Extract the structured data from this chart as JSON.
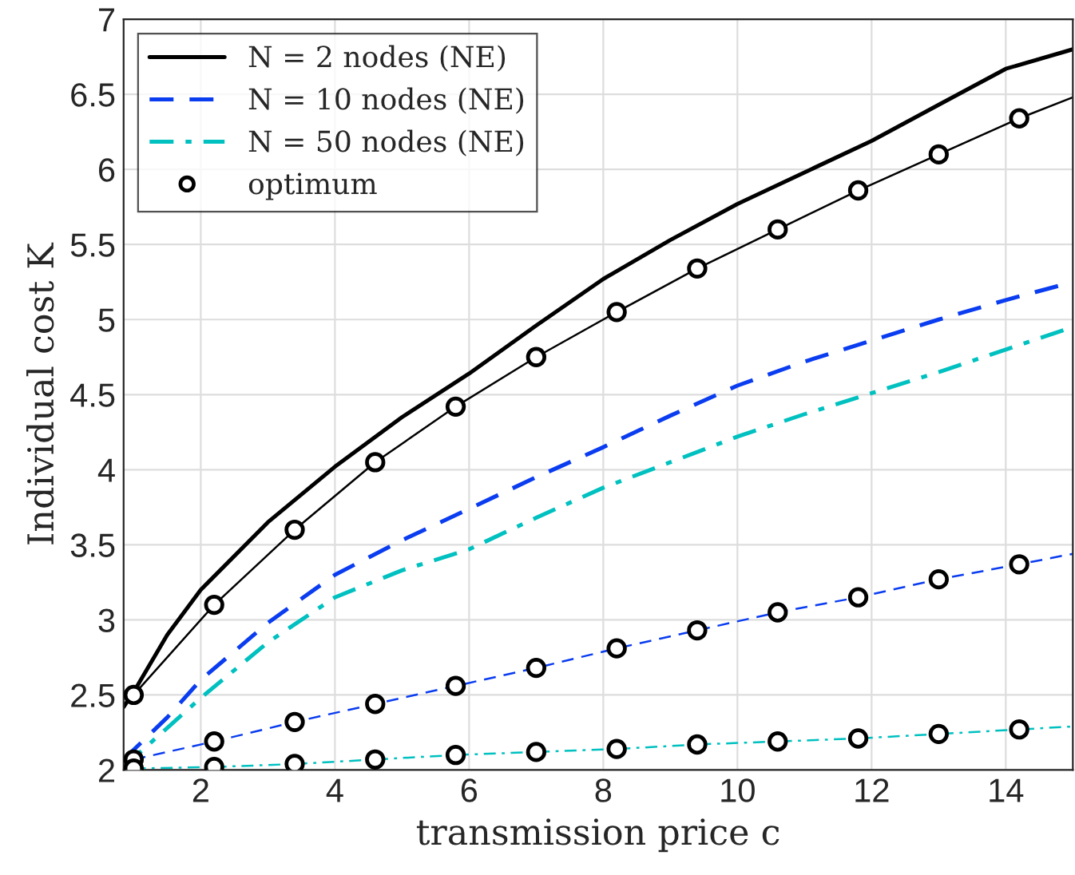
{
  "chart_data": {
    "type": "line",
    "xlabel": "transmission price c",
    "ylabel": "Individual cost K",
    "xlim": [
      0.85,
      15
    ],
    "ylim": [
      2,
      7
    ],
    "xticks": [
      2,
      4,
      6,
      8,
      10,
      12,
      14
    ],
    "yticks": [
      2,
      2.5,
      3,
      3.5,
      4,
      4.5,
      5,
      5.5,
      6,
      6.5,
      7
    ],
    "grid": true,
    "legend": "top left",
    "series": [
      {
        "name": "N = 2 nodes (NE)",
        "color": "#000000",
        "line_style": "solid",
        "x": [
          0.85,
          1,
          1.5,
          2,
          3,
          4,
          5,
          6,
          7,
          8,
          9,
          10,
          11,
          12,
          13,
          14,
          15
        ],
        "values": [
          2.42,
          2.52,
          2.9,
          3.2,
          3.65,
          4.02,
          4.35,
          4.64,
          4.96,
          5.27,
          5.53,
          5.77,
          5.98,
          6.19,
          6.43,
          6.67,
          6.8
        ]
      },
      {
        "name": "N = 10 nodes (NE)",
        "color": "#0a3cf0",
        "line_style": "dashed",
        "x": [
          0.85,
          1.5,
          2,
          3,
          4,
          5,
          6,
          7,
          8,
          9,
          10,
          11,
          12,
          13,
          14,
          15
        ],
        "values": [
          2.07,
          2.35,
          2.6,
          2.98,
          3.3,
          3.53,
          3.74,
          3.95,
          4.15,
          4.36,
          4.56,
          4.72,
          4.86,
          5.0,
          5.13,
          5.25
        ]
      },
      {
        "name": "N = 50 nodes (NE)",
        "color": "#00c0c0",
        "line_style": "dashdot",
        "x": [
          0.85,
          1.5,
          2,
          3,
          4,
          5,
          6,
          7,
          8,
          9,
          10,
          11,
          12,
          13,
          14,
          15
        ],
        "values": [
          2.02,
          2.28,
          2.48,
          2.85,
          3.15,
          3.33,
          3.47,
          3.68,
          3.88,
          4.05,
          4.22,
          4.37,
          4.51,
          4.65,
          4.8,
          4.95
        ]
      },
      {
        "color": "#000000",
        "line_style": "solid",
        "x": [
          1,
          2.2,
          3.4,
          4.6,
          5.8,
          7,
          8.2,
          9.4,
          10.6,
          11.8,
          13,
          14.2,
          15
        ],
        "values": [
          2.5,
          3.1,
          3.6,
          4.05,
          4.42,
          4.75,
          5.05,
          5.34,
          5.6,
          5.86,
          6.1,
          6.34,
          6.48
        ]
      },
      {
        "color": "#0a3cf0",
        "line_style": "dashed",
        "x": [
          1,
          2.2,
          3.4,
          4.6,
          5.8,
          7,
          8.2,
          9.4,
          10.6,
          11.8,
          13,
          14.2,
          15
        ],
        "values": [
          2.07,
          2.19,
          2.32,
          2.44,
          2.56,
          2.68,
          2.81,
          2.93,
          3.05,
          3.15,
          3.27,
          3.37,
          3.44
        ]
      },
      {
        "color": "#00c0c0",
        "line_style": "dashdot",
        "x": [
          1,
          2.2,
          3.4,
          4.6,
          5.8,
          7,
          8.2,
          9.4,
          10.6,
          11.8,
          13,
          14.2,
          15
        ],
        "values": [
          2.01,
          2.02,
          2.04,
          2.07,
          2.1,
          2.12,
          2.14,
          2.17,
          2.19,
          2.21,
          2.24,
          2.27,
          2.29
        ]
      },
      {
        "name": "optimum",
        "type": "scatter",
        "marker": "circle",
        "color": "#000000",
        "x": [
          1,
          2.2,
          3.4,
          4.6,
          5.8,
          7,
          8.2,
          9.4,
          10.6,
          11.8,
          13,
          14.2,
          1,
          2.2,
          3.4,
          4.6,
          5.8,
          7,
          8.2,
          9.4,
          10.6,
          11.8,
          13,
          14.2,
          1,
          2.2,
          3.4,
          4.6,
          5.8,
          7,
          8.2,
          9.4,
          10.6,
          11.8,
          13,
          14.2
        ],
        "values": [
          2.5,
          3.1,
          3.6,
          4.05,
          4.42,
          4.75,
          5.05,
          5.34,
          5.6,
          5.86,
          6.1,
          6.34,
          2.07,
          2.19,
          2.32,
          2.44,
          2.56,
          2.68,
          2.81,
          2.93,
          3.05,
          3.15,
          3.27,
          3.37,
          2.01,
          2.02,
          2.04,
          2.07,
          2.1,
          2.12,
          2.14,
          2.17,
          2.19,
          2.21,
          2.24,
          2.27
        ]
      }
    ]
  }
}
